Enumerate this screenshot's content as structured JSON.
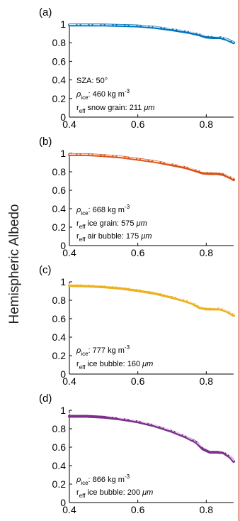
{
  "figure": {
    "shared_ylabel": "Hemispheric Albedo",
    "right_border_color": "#d9534f"
  },
  "chart_data": [
    {
      "type": "line",
      "panel_label": "(a)",
      "color": "#0072BD",
      "xlim": [
        0.4,
        0.88
      ],
      "ylim": [
        0,
        1
      ],
      "xticks": [
        "0.4",
        "0.6",
        "0.8"
      ],
      "yticks": [
        "0",
        "0.2",
        "0.4",
        "0.6",
        "0.8",
        "1"
      ],
      "annotations": [
        {
          "text": "SZA: 50°"
        },
        {
          "text": "ρice: 460 kg m-3",
          "sym": "ρ",
          "sub": "ice",
          "mid": ": 460 kg m",
          "sup": "-3",
          "end": ""
        },
        {
          "text": "reff snow grain: 211 μm",
          "sym": "r",
          "sub": "eff",
          "mid": " snow grain: 211 ",
          "sup": "",
          "end": "μm"
        }
      ],
      "series": [
        {
          "style": "solid",
          "x": [
            0.4,
            0.5,
            0.6,
            0.65,
            0.7,
            0.75,
            0.78,
            0.8,
            0.82,
            0.84,
            0.86,
            0.88
          ],
          "y": [
            0.99,
            0.99,
            0.98,
            0.965,
            0.94,
            0.91,
            0.885,
            0.86,
            0.855,
            0.855,
            0.835,
            0.8
          ]
        },
        {
          "style": "dashed",
          "x": [
            0.4,
            0.5,
            0.6,
            0.65,
            0.7,
            0.75,
            0.78,
            0.8,
            0.82,
            0.84,
            0.86,
            0.88
          ],
          "y": [
            0.995,
            0.993,
            0.985,
            0.97,
            0.95,
            0.92,
            0.895,
            0.875,
            0.87,
            0.865,
            0.84,
            0.805
          ]
        }
      ]
    },
    {
      "type": "line",
      "panel_label": "(b)",
      "color": "#D95319",
      "xlim": [
        0.4,
        0.88
      ],
      "ylim": [
        0,
        1
      ],
      "xticks": [
        "0.4",
        "0.6",
        "0.8"
      ],
      "yticks": [
        "0",
        "0.2",
        "0.4",
        "0.6",
        "0.8",
        "1"
      ],
      "annotations": [
        {
          "text": "ρice: 668 kg m-3",
          "sym": "ρ",
          "sub": "ice",
          "mid": ": 668 kg m",
          "sup": "-3",
          "end": ""
        },
        {
          "text": "reff ice grain: 575 μm",
          "sym": "r",
          "sub": "eff",
          "mid": " ice grain: 575 ",
          "sup": "",
          "end": "μm"
        },
        {
          "text": "reff air bubble: 175 μm",
          "sym": "r",
          "sub": "eff",
          "mid": " air bubble: 175 ",
          "sup": "",
          "end": "μm"
        }
      ],
      "series": [
        {
          "style": "solid",
          "x": [
            0.4,
            0.45,
            0.5,
            0.55,
            0.6,
            0.65,
            0.7,
            0.74,
            0.77,
            0.79,
            0.81,
            0.83,
            0.85,
            0.87,
            0.88
          ],
          "y": [
            0.985,
            0.985,
            0.975,
            0.96,
            0.935,
            0.91,
            0.875,
            0.845,
            0.81,
            0.785,
            0.78,
            0.78,
            0.77,
            0.735,
            0.715
          ]
        },
        {
          "style": "dashed",
          "x": [
            0.4,
            0.45,
            0.5,
            0.55,
            0.6,
            0.65,
            0.7,
            0.74,
            0.77,
            0.79,
            0.81,
            0.83,
            0.85,
            0.87,
            0.88
          ],
          "y": [
            0.99,
            0.99,
            0.98,
            0.965,
            0.94,
            0.915,
            0.885,
            0.855,
            0.82,
            0.8,
            0.795,
            0.795,
            0.785,
            0.745,
            0.725
          ]
        }
      ]
    },
    {
      "type": "line",
      "panel_label": "(c)",
      "color": "#EDB120",
      "xlim": [
        0.4,
        0.88
      ],
      "ylim": [
        0,
        1
      ],
      "xticks": [
        "0.4",
        "0.6",
        "0.8"
      ],
      "yticks": [
        "0",
        "0.2",
        "0.4",
        "0.6",
        "0.8",
        "1"
      ],
      "annotations": [
        {
          "text": "ρice: 777 kg m-3",
          "sym": "ρ",
          "sub": "ice",
          "mid": ": 777 kg m",
          "sup": "-3",
          "end": ""
        },
        {
          "text": "reff ice bubble: 160 μm",
          "sym": "r",
          "sub": "eff",
          "mid": " ice bubble: 160 ",
          "sup": "",
          "end": "μm"
        }
      ],
      "series": [
        {
          "style": "solid",
          "x": [
            0.4,
            0.45,
            0.5,
            0.55,
            0.6,
            0.65,
            0.7,
            0.73,
            0.76,
            0.78,
            0.8,
            0.82,
            0.84,
            0.86,
            0.88
          ],
          "y": [
            0.96,
            0.955,
            0.945,
            0.93,
            0.905,
            0.875,
            0.83,
            0.8,
            0.765,
            0.72,
            0.705,
            0.705,
            0.705,
            0.68,
            0.635
          ]
        },
        {
          "style": "dashed",
          "x": [
            0.4,
            0.45,
            0.5,
            0.55,
            0.6,
            0.65,
            0.7,
            0.73,
            0.76,
            0.78,
            0.8,
            0.82,
            0.84,
            0.86,
            0.88
          ],
          "y": [
            0.975,
            0.97,
            0.96,
            0.945,
            0.92,
            0.89,
            0.845,
            0.81,
            0.775,
            0.735,
            0.72,
            0.72,
            0.715,
            0.69,
            0.645
          ]
        }
      ]
    },
    {
      "type": "line",
      "panel_label": "(d)",
      "color": "#7E2F8E",
      "xlim": [
        0.4,
        0.88
      ],
      "ylim": [
        0,
        1
      ],
      "xticks": [
        "0.4",
        "0.6",
        "0.8"
      ],
      "yticks": [
        "0",
        "0.2",
        "0.4",
        "0.6",
        "0.8",
        "1"
      ],
      "annotations": [
        {
          "text": "ρice: 866 kg m-3",
          "sym": "ρ",
          "sub": "ice",
          "mid": ": 866 kg m",
          "sup": "-3",
          "end": ""
        },
        {
          "text": "reff ice bubble: 200 μm",
          "sym": "r",
          "sub": "eff",
          "mid": " ice bubble: 200 ",
          "sup": "",
          "end": "μm"
        }
      ],
      "series": [
        {
          "style": "solid",
          "x": [
            0.4,
            0.45,
            0.5,
            0.55,
            0.6,
            0.65,
            0.7,
            0.74,
            0.77,
            0.79,
            0.81,
            0.83,
            0.85,
            0.87,
            0.88
          ],
          "y": [
            0.935,
            0.935,
            0.925,
            0.905,
            0.875,
            0.83,
            0.77,
            0.71,
            0.655,
            0.58,
            0.545,
            0.545,
            0.54,
            0.49,
            0.445
          ]
        },
        {
          "style": "dashed",
          "x": [
            0.4,
            0.45,
            0.5,
            0.55,
            0.6,
            0.65,
            0.7,
            0.74,
            0.77,
            0.79,
            0.81,
            0.83,
            0.85,
            0.87,
            0.88
          ],
          "y": [
            0.965,
            0.96,
            0.945,
            0.915,
            0.885,
            0.84,
            0.78,
            0.72,
            0.66,
            0.6,
            0.565,
            0.565,
            0.555,
            0.5,
            0.455
          ]
        }
      ]
    }
  ]
}
